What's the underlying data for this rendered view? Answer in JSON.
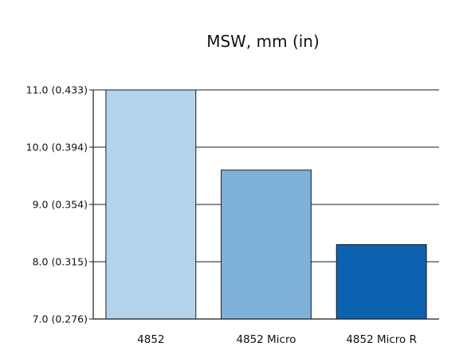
{
  "chart_data": {
    "type": "bar",
    "title": "MSW, mm (in)",
    "xlabel": "",
    "ylabel": "",
    "categories": [
      "4852",
      "4852 Micro",
      "4852 Micro R"
    ],
    "values": [
      11.0,
      9.6,
      8.3
    ],
    "ylim": [
      7.0,
      11.0
    ],
    "y_ticks": [
      {
        "value": 7.0,
        "label": "7.0 (0.276)"
      },
      {
        "value": 8.0,
        "label": "8.0 (0.315)"
      },
      {
        "value": 9.0,
        "label": "9.0 (0.354)"
      },
      {
        "value": 10.0,
        "label": "10.0 (0.394)"
      },
      {
        "value": 11.0,
        "label": "11.0 (0.433)"
      }
    ],
    "bar_colors": [
      "#b3d3ea",
      "#7eb1da",
      "#0a62b1"
    ],
    "grid": true,
    "legend": "none"
  }
}
